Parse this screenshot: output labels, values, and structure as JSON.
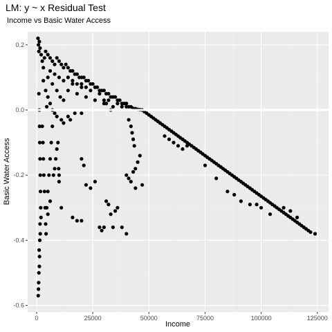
{
  "chart_data": {
    "type": "scatter",
    "title": "LM: y ~ x Residual Test",
    "subtitle": "Income vs Basic Water Access",
    "xlabel": "Income",
    "ylabel": "Basic Water Access",
    "xlim": [
      -4000,
      130000
    ],
    "ylim": [
      -0.62,
      0.24
    ],
    "x_ticks": [
      0,
      25000,
      50000,
      75000,
      100000,
      125000
    ],
    "x_tick_labels": [
      "0",
      "25000",
      "50000",
      "75000",
      "100000",
      "125000"
    ],
    "y_ticks": [
      -0.6,
      -0.4,
      -0.2,
      0.0,
      0.2
    ],
    "y_tick_labels": [
      "-0.6",
      "-0.4",
      "-0.2",
      "0.0",
      "0.2"
    ],
    "hline": 0,
    "grid": true,
    "legend": "none",
    "point_color": "#000000",
    "panel_color": "#ebebeb",
    "points": [
      [
        600,
        0.22
      ],
      [
        800,
        0.2
      ],
      [
        1000,
        0.18
      ],
      [
        1200,
        0.21
      ],
      [
        1500,
        0.19
      ],
      [
        2000,
        0.17
      ],
      [
        2500,
        0.15
      ],
      [
        3000,
        0.13
      ],
      [
        3500,
        0.16
      ],
      [
        4000,
        0.18
      ],
      [
        5000,
        0.17
      ],
      [
        6000,
        0.16
      ],
      [
        7000,
        0.15
      ],
      [
        8000,
        0.14
      ],
      [
        9000,
        0.16
      ],
      [
        10000,
        0.15
      ],
      [
        11000,
        0.14
      ],
      [
        12000,
        0.13
      ],
      [
        13000,
        0.14
      ],
      [
        14000,
        0.13
      ],
      [
        15000,
        0.12
      ],
      [
        16000,
        0.12
      ],
      [
        17000,
        0.11
      ],
      [
        18000,
        0.11
      ],
      [
        19000,
        0.1
      ],
      [
        20000,
        0.1
      ],
      [
        21000,
        0.1
      ],
      [
        22000,
        0.09
      ],
      [
        23000,
        0.09
      ],
      [
        24000,
        0.08
      ],
      [
        25000,
        0.08
      ],
      [
        26000,
        0.07
      ],
      [
        27000,
        0.07
      ],
      [
        28000,
        0.06
      ],
      [
        29000,
        0.06
      ],
      [
        30000,
        0.06
      ],
      [
        31000,
        0.05
      ],
      [
        32000,
        0.05
      ],
      [
        33000,
        0.04
      ],
      [
        34000,
        0.04
      ],
      [
        35000,
        0.04
      ],
      [
        36000,
        0.03
      ],
      [
        37000,
        0.03
      ],
      [
        38000,
        0.02
      ],
      [
        39000,
        0.02
      ],
      [
        40000,
        0.02
      ],
      [
        41000,
        0.01
      ],
      [
        42000,
        0.01
      ],
      [
        43000,
        0.005
      ],
      [
        44000,
        0.004
      ],
      [
        45000,
        0.002
      ],
      [
        46000,
        0.001
      ],
      [
        47000,
        0.0
      ],
      [
        5000,
        0.1
      ],
      [
        7000,
        0.08
      ],
      [
        9000,
        0.06
      ],
      [
        10500,
        0.04
      ],
      [
        12000,
        0.03
      ],
      [
        14000,
        0.06
      ],
      [
        16000,
        0.08
      ],
      [
        18000,
        0.05
      ],
      [
        20000,
        0.07
      ],
      [
        22000,
        0.04
      ],
      [
        24000,
        0.06
      ],
      [
        26000,
        0.03
      ],
      [
        28000,
        0.05
      ],
      [
        30000,
        0.02
      ],
      [
        32000,
        0.03
      ],
      [
        34000,
        0.01
      ],
      [
        36000,
        0.02
      ],
      [
        38000,
        0.01
      ],
      [
        40000,
        0.01
      ],
      [
        6000,
        0.12
      ],
      [
        8000,
        0.11
      ],
      [
        10000,
        0.1
      ],
      [
        12000,
        0.09
      ],
      [
        14000,
        0.1
      ],
      [
        16000,
        0.09
      ],
      [
        18000,
        0.08
      ],
      [
        20000,
        0.08
      ],
      [
        22000,
        0.07
      ],
      [
        3000,
        0.09
      ],
      [
        4000,
        0.06
      ],
      [
        5000,
        0.04
      ],
      [
        6000,
        0.02
      ],
      [
        4500,
        0.01
      ],
      [
        7000,
        0.0
      ],
      [
        8000,
        -0.01
      ],
      [
        9000,
        -0.02
      ],
      [
        11000,
        -0.03
      ],
      [
        12000,
        -0.04
      ],
      [
        14000,
        -0.02
      ],
      [
        15000,
        -0.03
      ],
      [
        17000,
        -0.01
      ],
      [
        20000,
        -0.01
      ],
      [
        30000,
        0.03
      ],
      [
        31000,
        0.02
      ],
      [
        33000,
        0.0
      ],
      [
        1000,
        0.05
      ],
      [
        1200,
        0.0
      ],
      [
        1300,
        -0.05
      ],
      [
        1400,
        -0.1
      ],
      [
        1500,
        -0.15
      ],
      [
        1600,
        -0.2
      ],
      [
        1700,
        -0.25
      ],
      [
        1800,
        -0.3
      ],
      [
        1500,
        -0.35
      ],
      [
        1400,
        -0.4
      ],
      [
        1300,
        -0.45
      ],
      [
        1200,
        -0.48
      ],
      [
        1000,
        -0.5
      ],
      [
        900,
        -0.53
      ],
      [
        800,
        -0.55
      ],
      [
        700,
        -0.57
      ],
      [
        1100,
        -0.43
      ],
      [
        1600,
        -0.38
      ],
      [
        1900,
        -0.33
      ],
      [
        2500,
        -0.05
      ],
      [
        2800,
        -0.1
      ],
      [
        3000,
        -0.15
      ],
      [
        3200,
        -0.2
      ],
      [
        3500,
        -0.25
      ],
      [
        3800,
        -0.3
      ],
      [
        4000,
        -0.35
      ],
      [
        4200,
        -0.38
      ],
      [
        4500,
        -0.3
      ],
      [
        5000,
        -0.25
      ],
      [
        5500,
        -0.2
      ],
      [
        6000,
        -0.15
      ],
      [
        6500,
        -0.1
      ],
      [
        7000,
        -0.05
      ],
      [
        7500,
        -0.2
      ],
      [
        8000,
        -0.18
      ],
      [
        8500,
        -0.15
      ],
      [
        9000,
        -0.12
      ],
      [
        9500,
        -0.1
      ],
      [
        10000,
        -0.22
      ],
      [
        10000,
        -0.2
      ],
      [
        9800,
        -0.18
      ],
      [
        6000,
        -0.28
      ],
      [
        5000,
        -0.32
      ],
      [
        11000,
        -0.3
      ],
      [
        16000,
        -0.33
      ],
      [
        18000,
        -0.34
      ],
      [
        20000,
        -0.34
      ],
      [
        22000,
        -0.23
      ],
      [
        24000,
        -0.24
      ],
      [
        26000,
        -0.22
      ],
      [
        28000,
        -0.36
      ],
      [
        29000,
        -0.37
      ],
      [
        30000,
        -0.36
      ],
      [
        31000,
        -0.28
      ],
      [
        32000,
        -0.29
      ],
      [
        33000,
        -0.32
      ],
      [
        34000,
        -0.36
      ],
      [
        35000,
        -0.31
      ],
      [
        36000,
        -0.3
      ],
      [
        38000,
        -0.36
      ],
      [
        40000,
        -0.38
      ],
      [
        40000,
        -0.2
      ],
      [
        41000,
        -0.21
      ],
      [
        42000,
        -0.22
      ],
      [
        43000,
        -0.19
      ],
      [
        44000,
        -0.18
      ],
      [
        45000,
        -0.16
      ],
      [
        46000,
        -0.14
      ],
      [
        47000,
        -0.23
      ],
      [
        44000,
        -0.24
      ],
      [
        41000,
        -0.03
      ],
      [
        42000,
        -0.05
      ],
      [
        42500,
        -0.07
      ],
      [
        43000,
        -0.09
      ],
      [
        43500,
        -0.11
      ],
      [
        20000,
        -0.15
      ],
      [
        21000,
        -0.17
      ],
      [
        47000,
        0.0
      ],
      [
        48000,
        -0.005
      ],
      [
        49000,
        -0.01
      ],
      [
        50000,
        -0.015
      ],
      [
        51000,
        -0.02
      ],
      [
        52000,
        -0.025
      ],
      [
        53000,
        -0.03
      ],
      [
        54000,
        -0.035
      ],
      [
        55000,
        -0.04
      ],
      [
        56000,
        -0.045
      ],
      [
        57000,
        -0.05
      ],
      [
        58000,
        -0.055
      ],
      [
        59000,
        -0.06
      ],
      [
        60000,
        -0.065
      ],
      [
        61000,
        -0.07
      ],
      [
        62000,
        -0.075
      ],
      [
        63000,
        -0.08
      ],
      [
        64000,
        -0.085
      ],
      [
        65000,
        -0.09
      ],
      [
        66000,
        -0.095
      ],
      [
        67000,
        -0.1
      ],
      [
        68000,
        -0.105
      ],
      [
        69000,
        -0.11
      ],
      [
        70000,
        -0.115
      ],
      [
        71000,
        -0.12
      ],
      [
        72000,
        -0.125
      ],
      [
        73000,
        -0.13
      ],
      [
        74000,
        -0.135
      ],
      [
        75000,
        -0.14
      ],
      [
        76000,
        -0.145
      ],
      [
        77000,
        -0.15
      ],
      [
        78000,
        -0.155
      ],
      [
        79000,
        -0.16
      ],
      [
        80000,
        -0.165
      ],
      [
        81000,
        -0.17
      ],
      [
        82000,
        -0.175
      ],
      [
        83000,
        -0.18
      ],
      [
        84000,
        -0.185
      ],
      [
        85000,
        -0.19
      ],
      [
        86000,
        -0.195
      ],
      [
        87000,
        -0.2
      ],
      [
        88000,
        -0.205
      ],
      [
        89000,
        -0.21
      ],
      [
        90000,
        -0.215
      ],
      [
        91000,
        -0.22
      ],
      [
        92000,
        -0.225
      ],
      [
        93000,
        -0.23
      ],
      [
        94000,
        -0.235
      ],
      [
        95000,
        -0.24
      ],
      [
        96000,
        -0.245
      ],
      [
        97000,
        -0.25
      ],
      [
        98000,
        -0.255
      ],
      [
        99000,
        -0.26
      ],
      [
        100000,
        -0.265
      ],
      [
        101000,
        -0.27
      ],
      [
        102000,
        -0.275
      ],
      [
        103000,
        -0.28
      ],
      [
        104000,
        -0.285
      ],
      [
        105000,
        -0.29
      ],
      [
        106000,
        -0.295
      ],
      [
        107000,
        -0.3
      ],
      [
        108000,
        -0.305
      ],
      [
        109000,
        -0.31
      ],
      [
        110000,
        -0.315
      ],
      [
        111000,
        -0.32
      ],
      [
        112000,
        -0.325
      ],
      [
        113000,
        -0.33
      ],
      [
        114000,
        -0.335
      ],
      [
        115000,
        -0.34
      ],
      [
        116000,
        -0.345
      ],
      [
        117000,
        -0.35
      ],
      [
        118000,
        -0.355
      ],
      [
        119000,
        -0.36
      ],
      [
        120000,
        -0.365
      ],
      [
        121000,
        -0.37
      ],
      [
        122000,
        -0.375
      ],
      [
        124000,
        -0.38
      ],
      [
        57000,
        -0.08
      ],
      [
        59000,
        -0.09
      ],
      [
        61000,
        -0.1
      ],
      [
        63000,
        -0.11
      ],
      [
        65000,
        -0.12
      ],
      [
        67000,
        -0.11
      ],
      [
        75000,
        -0.17
      ],
      [
        80000,
        -0.21
      ],
      [
        85000,
        -0.25
      ],
      [
        88000,
        -0.26
      ],
      [
        91000,
        -0.28
      ],
      [
        95000,
        -0.29
      ],
      [
        98000,
        -0.29
      ],
      [
        100000,
        -0.3
      ],
      [
        104000,
        -0.32
      ],
      [
        110000,
        -0.3
      ],
      [
        113000,
        -0.31
      ],
      [
        116000,
        -0.33
      ]
    ]
  }
}
